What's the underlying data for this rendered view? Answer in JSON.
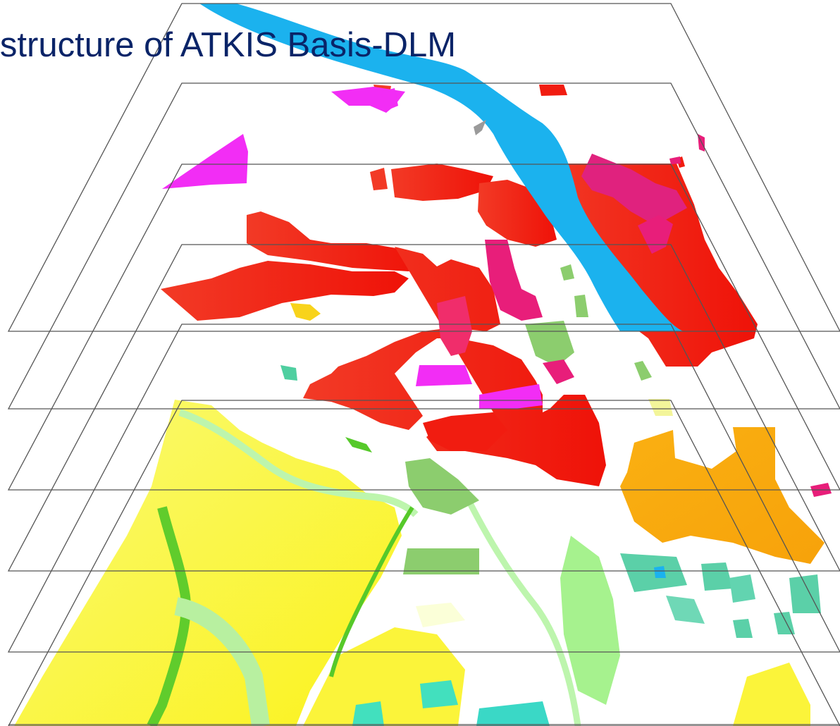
{
  "title": "r structure of ATKIS Basis-DLM",
  "colors": {
    "title": "#0a2468",
    "frame_line": "#555555",
    "water": "#1bb2ee",
    "settlement_red": "#f11c10",
    "mixed_use": "#e81e7a",
    "special_use_magenta": "#f22df5",
    "industrial_orange": "#f7a90c",
    "agriculture_yellow": "#fbf641",
    "grassland_green": "#8ccd6e",
    "forest_green": "#56c92a",
    "light_green": "#a9f59a",
    "cyan_parcels": "#42e0be",
    "teal_parcels": "#5bd0a8",
    "small_yellow": "#f8d31b"
  },
  "map": {
    "layer_planes": 7,
    "layer_themes": [
      "water",
      "settlement_red",
      "mixed_use",
      "special_use_magenta",
      "industrial_orange",
      "grassland_green",
      "agriculture_yellow"
    ]
  }
}
